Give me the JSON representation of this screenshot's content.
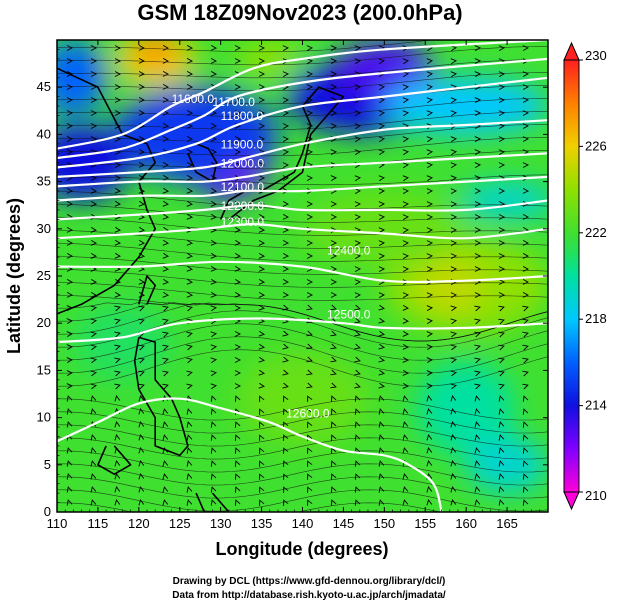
{
  "chart_data": {
    "type": "heatmap",
    "title": "GSM 18Z09Nov2023 (200.0hPa)",
    "xlabel": "Longitude (degrees)",
    "ylabel": "Latitude  (degrees)",
    "xlim": [
      110,
      170
    ],
    "ylim": [
      0,
      50
    ],
    "x_ticks": [
      "110",
      "115",
      "120",
      "125",
      "130",
      "135",
      "140",
      "145",
      "150",
      "155",
      "160",
      "165"
    ],
    "y_ticks": [
      "0",
      "5",
      "10",
      "15",
      "20",
      "25",
      "30",
      "35",
      "40",
      "45"
    ],
    "colorbar": {
      "min": 210,
      "max": 230,
      "tick_labels": [
        "210",
        "214",
        "218",
        "222",
        "226",
        "230"
      ],
      "stops": [
        {
          "value": 210,
          "color": "#ff00d8"
        },
        {
          "value": 212,
          "color": "#8000ff"
        },
        {
          "value": 214,
          "color": "#1010e0"
        },
        {
          "value": 216,
          "color": "#0060ff"
        },
        {
          "value": 218,
          "color": "#00c8ff"
        },
        {
          "value": 220,
          "color": "#00e0a0"
        },
        {
          "value": 221,
          "color": "#20e060"
        },
        {
          "value": 222,
          "color": "#40e030"
        },
        {
          "value": 224,
          "color": "#90e000"
        },
        {
          "value": 226,
          "color": "#f0d000"
        },
        {
          "value": 228,
          "color": "#ff8000"
        },
        {
          "value": 230,
          "color": "#ff2020"
        }
      ]
    },
    "contours": [
      {
        "label": "11600.0",
        "points": [
          [
            110,
            38.5
          ],
          [
            118,
            40
          ],
          [
            124,
            43
          ],
          [
            128,
            44.5
          ],
          [
            134,
            47
          ],
          [
            140,
            48
          ],
          [
            150,
            49
          ],
          [
            170,
            50
          ]
        ],
        "label_at": [
          124,
          43.3
        ]
      },
      {
        "label": "11700.0",
        "points": [
          [
            110,
            37.5
          ],
          [
            118,
            38.5
          ],
          [
            124,
            40.5
          ],
          [
            128,
            42
          ],
          [
            132,
            44
          ],
          [
            140,
            45.5
          ],
          [
            150,
            46.5
          ],
          [
            170,
            48
          ]
        ],
        "label_at": [
          129,
          43
        ]
      },
      {
        "label": "11800.0",
        "points": [
          [
            110,
            36.5
          ],
          [
            120,
            37.5
          ],
          [
            127,
            39
          ],
          [
            132,
            41
          ],
          [
            140,
            43
          ],
          [
            150,
            44
          ],
          [
            160,
            45
          ],
          [
            170,
            46
          ]
        ],
        "label_at": [
          130,
          41.5
        ]
      },
      {
        "label": "11900.0",
        "points": [
          [
            110,
            35.5
          ],
          [
            120,
            36
          ],
          [
            128,
            36.5
          ],
          [
            133,
            37.5
          ],
          [
            140,
            39
          ],
          [
            150,
            40.5
          ],
          [
            160,
            41
          ],
          [
            170,
            41.5
          ]
        ],
        "label_at": [
          130,
          38.5
        ]
      },
      {
        "label": "12000.0",
        "points": [
          [
            110,
            34.5
          ],
          [
            120,
            35
          ],
          [
            128,
            35
          ],
          [
            133,
            35.5
          ],
          [
            140,
            36.5
          ],
          [
            150,
            37
          ],
          [
            160,
            37.5
          ],
          [
            170,
            38
          ]
        ],
        "label_at": [
          130,
          36.5
        ]
      },
      {
        "label": "12100.0",
        "points": [
          [
            110,
            33
          ],
          [
            120,
            33.5
          ],
          [
            128,
            33.5
          ],
          [
            133,
            34
          ],
          [
            140,
            34
          ],
          [
            150,
            34.5
          ],
          [
            160,
            35
          ],
          [
            170,
            35.5
          ]
        ],
        "label_at": [
          130,
          34
        ]
      },
      {
        "label": "12200.0",
        "points": [
          [
            110,
            31
          ],
          [
            120,
            31.5
          ],
          [
            128,
            32
          ],
          [
            134,
            32.5
          ],
          [
            140,
            32
          ],
          [
            150,
            32
          ],
          [
            160,
            32
          ],
          [
            170,
            33
          ]
        ],
        "label_at": [
          130,
          32
        ]
      },
      {
        "label": "12300.0",
        "points": [
          [
            110,
            29
          ],
          [
            120,
            29.5
          ],
          [
            128,
            30
          ],
          [
            134,
            30.5
          ],
          [
            140,
            30
          ],
          [
            150,
            29.5
          ],
          [
            160,
            29
          ],
          [
            170,
            30
          ]
        ],
        "label_at": [
          130,
          30.3
        ]
      },
      {
        "label": "12400.0",
        "points": [
          [
            110,
            26
          ],
          [
            120,
            26
          ],
          [
            130,
            26.5
          ],
          [
            140,
            26
          ],
          [
            150,
            24.5
          ],
          [
            160,
            24.5
          ],
          [
            170,
            25
          ]
        ],
        "label_at": [
          143,
          27.3
        ]
      },
      {
        "label": "12500.0",
        "points": [
          [
            110,
            18
          ],
          [
            118,
            18.5
          ],
          [
            125,
            20
          ],
          [
            135,
            20.5
          ],
          [
            145,
            20
          ],
          [
            150,
            19.5
          ],
          [
            160,
            19.5
          ],
          [
            170,
            20
          ]
        ],
        "label_at": [
          143,
          20.5
        ]
      },
      {
        "label": "12600.0",
        "points": [
          [
            110,
            7.5
          ],
          [
            115,
            9.5
          ],
          [
            120,
            11.5
          ],
          [
            125,
            12
          ],
          [
            130,
            11
          ],
          [
            136,
            9.5
          ],
          [
            140,
            8
          ],
          [
            145,
            6.5
          ],
          [
            150,
            6
          ],
          [
            153,
            5
          ],
          [
            156,
            3
          ],
          [
            157,
            0
          ]
        ],
        "label_at": [
          138,
          10
        ]
      }
    ],
    "field_blobs": [
      {
        "value": 213,
        "cx": 131,
        "cy": 37,
        "rx": 5,
        "ry": 4
      },
      {
        "value": 211,
        "cx": 132,
        "cy": 37.5,
        "rx": 2.5,
        "ry": 2.5
      },
      {
        "value": 215,
        "cx": 127,
        "cy": 40,
        "rx": 10,
        "ry": 5
      },
      {
        "value": 214,
        "cx": 148,
        "cy": 44,
        "rx": 10,
        "ry": 4
      },
      {
        "value": 213,
        "cx": 150,
        "cy": 47,
        "rx": 6,
        "ry": 3
      },
      {
        "value": 214,
        "cx": 113,
        "cy": 37,
        "rx": 6,
        "ry": 4
      },
      {
        "value": 216,
        "cx": 112,
        "cy": 46,
        "rx": 4,
        "ry": 4
      },
      {
        "value": 218,
        "cx": 160,
        "cy": 43,
        "rx": 10,
        "ry": 3
      },
      {
        "value": 219,
        "cx": 165,
        "cy": 33,
        "rx": 6,
        "ry": 2
      },
      {
        "value": 226,
        "cx": 122,
        "cy": 48,
        "rx": 5,
        "ry": 3
      },
      {
        "value": 228,
        "cx": 122,
        "cy": 49,
        "rx": 2.5,
        "ry": 1.5
      },
      {
        "value": 224,
        "cx": 136,
        "cy": 48,
        "rx": 4,
        "ry": 2
      },
      {
        "value": 224,
        "cx": 160,
        "cy": 24,
        "rx": 10,
        "ry": 5
      },
      {
        "value": 225,
        "cx": 158,
        "cy": 24,
        "rx": 4,
        "ry": 3
      },
      {
        "value": 223,
        "cx": 140,
        "cy": 12,
        "rx": 8,
        "ry": 5
      },
      {
        "value": 220,
        "cx": 160,
        "cy": 11,
        "rx": 6,
        "ry": 5
      },
      {
        "value": 219,
        "cx": 165,
        "cy": 5,
        "rx": 5,
        "ry": 3
      },
      {
        "value": 223,
        "cx": 150,
        "cy": 30,
        "rx": 10,
        "ry": 4
      },
      {
        "value": 221,
        "cx": 118,
        "cy": 18,
        "rx": 6,
        "ry": 4
      }
    ]
  },
  "credits": {
    "line1": "Drawing by DCL (https://www.gfd-dennou.org/library/dcl/)",
    "line2": "Data from http://database.rish.kyoto-u.ac.jp/arch/jmadata/"
  }
}
